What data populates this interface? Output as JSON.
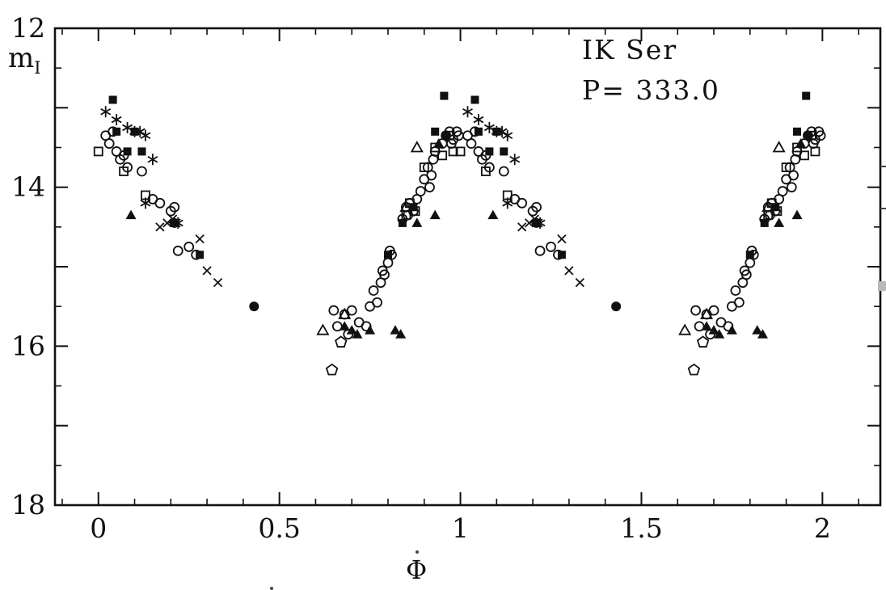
{
  "figure": {
    "title": "IK Ser",
    "period_label": "P= 333.0",
    "ylabel_main": "m",
    "ylabel_sub": "I",
    "xlabel": "Φ"
  },
  "chart_data": {
    "type": "scatter",
    "title": "IK Ser",
    "annotation": "P= 333.0",
    "xlabel": "Φ",
    "ylabel": "m_I",
    "xlim": [
      -0.12,
      2.16
    ],
    "ylim": [
      18,
      12
    ],
    "grid": false,
    "x_major_ticks": [
      0,
      0.5,
      1,
      1.5,
      2
    ],
    "x_major_labels": [
      "0",
      "0.5",
      "1",
      "1.5",
      "2"
    ],
    "x_minor_step": 0.1,
    "y_major_step": 1,
    "y_minor_step": 0.5,
    "y_labeled_ticks": [
      12,
      14,
      16,
      18
    ],
    "phase_duplicated": true,
    "series": [
      {
        "name": "open-circle",
        "marker": "circle-open",
        "points": [
          [
            0.02,
            13.35
          ],
          [
            0.03,
            13.45
          ],
          [
            0.04,
            13.3
          ],
          [
            0.05,
            13.55
          ],
          [
            0.06,
            13.65
          ],
          [
            0.07,
            13.6
          ],
          [
            0.08,
            13.75
          ],
          [
            0.12,
            13.8
          ],
          [
            0.15,
            14.15
          ],
          [
            0.17,
            14.2
          ],
          [
            0.2,
            14.3
          ],
          [
            0.21,
            14.25
          ],
          [
            0.22,
            14.8
          ],
          [
            0.25,
            14.75
          ],
          [
            0.27,
            14.85
          ],
          [
            0.65,
            15.55
          ],
          [
            0.66,
            15.75
          ],
          [
            0.68,
            15.6
          ],
          [
            0.69,
            15.85
          ],
          [
            0.7,
            15.55
          ],
          [
            0.72,
            15.7
          ],
          [
            0.74,
            15.75
          ],
          [
            0.75,
            15.5
          ],
          [
            0.76,
            15.3
          ],
          [
            0.77,
            15.45
          ],
          [
            0.78,
            15.2
          ],
          [
            0.785,
            15.05
          ],
          [
            0.79,
            15.1
          ],
          [
            0.8,
            14.95
          ],
          [
            0.805,
            14.8
          ],
          [
            0.81,
            14.85
          ],
          [
            0.84,
            14.4
          ],
          [
            0.85,
            14.25
          ],
          [
            0.855,
            14.35
          ],
          [
            0.86,
            14.2
          ],
          [
            0.87,
            14.3
          ],
          [
            0.88,
            14.15
          ],
          [
            0.89,
            14.05
          ],
          [
            0.9,
            13.9
          ],
          [
            0.91,
            13.75
          ],
          [
            0.915,
            14.0
          ],
          [
            0.92,
            13.85
          ],
          [
            0.925,
            13.65
          ],
          [
            0.93,
            13.55
          ],
          [
            0.95,
            13.45
          ],
          [
            0.96,
            13.35
          ],
          [
            0.97,
            13.3
          ],
          [
            0.975,
            13.45
          ],
          [
            0.98,
            13.4
          ],
          [
            0.99,
            13.3
          ],
          [
            0.995,
            13.35
          ]
        ]
      },
      {
        "name": "filled-square",
        "marker": "square-filled",
        "points": [
          [
            0.04,
            12.9
          ],
          [
            0.05,
            13.3
          ],
          [
            0.08,
            13.55
          ],
          [
            0.1,
            13.3
          ],
          [
            0.12,
            13.55
          ],
          [
            0.21,
            14.45
          ],
          [
            0.28,
            14.85
          ],
          [
            0.8,
            14.85
          ],
          [
            0.84,
            14.45
          ],
          [
            0.87,
            14.25
          ],
          [
            0.93,
            13.3
          ],
          [
            0.955,
            12.85
          ],
          [
            0.96,
            13.35
          ]
        ]
      },
      {
        "name": "open-square",
        "marker": "square-open",
        "points": [
          [
            0.0,
            13.55
          ],
          [
            0.07,
            13.8
          ],
          [
            0.13,
            14.1
          ],
          [
            0.85,
            14.35
          ],
          [
            0.86,
            14.2
          ],
          [
            0.875,
            14.3
          ],
          [
            0.9,
            13.75
          ],
          [
            0.93,
            13.5
          ],
          [
            0.95,
            13.6
          ],
          [
            0.97,
            13.35
          ],
          [
            0.98,
            13.55
          ]
        ]
      },
      {
        "name": "asterisk",
        "marker": "asterisk",
        "points": [
          [
            0.02,
            13.05
          ],
          [
            0.05,
            13.15
          ],
          [
            0.08,
            13.25
          ],
          [
            0.1,
            13.3
          ],
          [
            0.115,
            13.3
          ],
          [
            0.13,
            13.35
          ],
          [
            0.15,
            13.65
          ],
          [
            0.22,
            14.45
          ],
          [
            0.13,
            14.2
          ]
        ]
      },
      {
        "name": "cross",
        "marker": "x-cross",
        "points": [
          [
            0.17,
            14.5
          ],
          [
            0.19,
            14.45
          ],
          [
            0.205,
            14.4
          ],
          [
            0.215,
            14.45
          ],
          [
            0.28,
            14.65
          ],
          [
            0.3,
            15.05
          ],
          [
            0.33,
            15.2
          ]
        ]
      },
      {
        "name": "filled-triangle",
        "marker": "triangle-filled",
        "points": [
          [
            0.09,
            14.35
          ],
          [
            0.68,
            15.75
          ],
          [
            0.7,
            15.8
          ],
          [
            0.715,
            15.85
          ],
          [
            0.75,
            15.8
          ],
          [
            0.82,
            15.8
          ],
          [
            0.835,
            15.85
          ],
          [
            0.88,
            14.45
          ],
          [
            0.93,
            14.35
          ],
          [
            0.94,
            13.45
          ]
        ]
      },
      {
        "name": "open-triangle",
        "marker": "triangle-open",
        "points": [
          [
            0.62,
            15.8
          ],
          [
            0.68,
            15.6
          ],
          [
            0.85,
            14.25
          ],
          [
            0.88,
            13.5
          ]
        ]
      },
      {
        "name": "filled-circle",
        "marker": "circle-filled",
        "points": [
          [
            0.21,
            14.45
          ],
          [
            0.43,
            15.5
          ]
        ]
      },
      {
        "name": "open-pentagon",
        "marker": "pentagon-open",
        "points": [
          [
            0.645,
            16.3
          ],
          [
            0.67,
            15.95
          ]
        ]
      }
    ]
  }
}
